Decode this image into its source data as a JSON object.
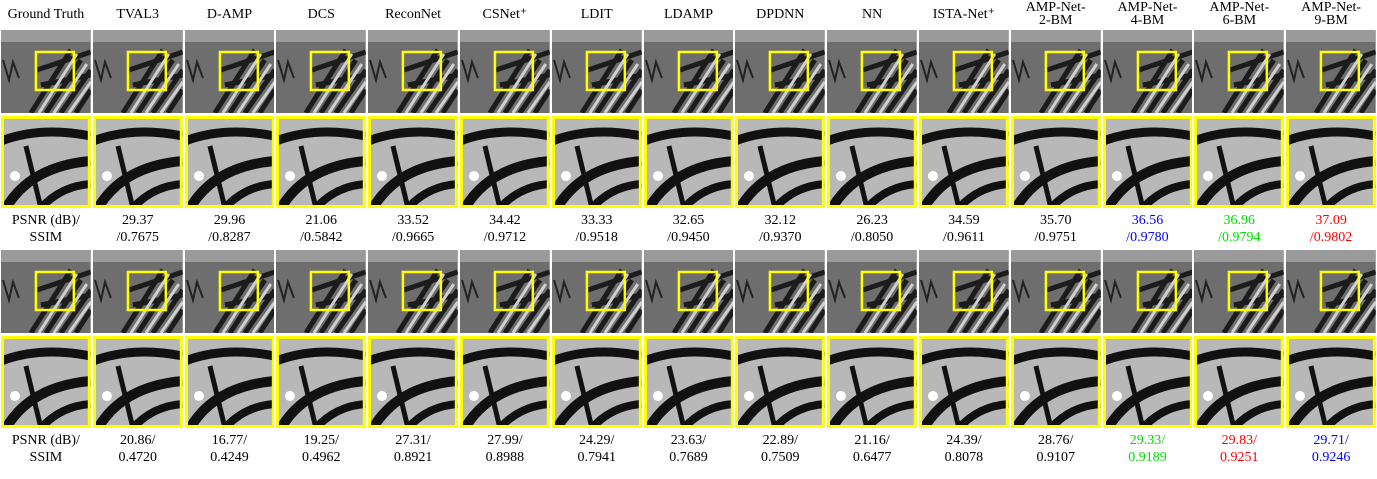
{
  "columns": [
    [
      "Ground Truth"
    ],
    [
      "TVAL3"
    ],
    [
      "D-AMP"
    ],
    [
      "DCS"
    ],
    [
      "ReconNet"
    ],
    [
      "CSNet⁺"
    ],
    [
      "LDIT"
    ],
    [
      "LDAMP"
    ],
    [
      "DPDNN"
    ],
    [
      "NN"
    ],
    [
      "ISTA-Net⁺"
    ],
    [
      "AMP-Net-",
      "2-BM"
    ],
    [
      "AMP-Net-",
      "4-BM"
    ],
    [
      "AMP-Net-",
      "6-BM"
    ],
    [
      "AMP-Net-",
      "9-BM"
    ]
  ],
  "blocks": [
    {
      "label": [
        "PSNR (dB)/",
        "SSIM"
      ],
      "metrics": [
        {
          "psnr": "29.37",
          "ssim": "/0.7675"
        },
        {
          "psnr": "29.96",
          "ssim": "/0.8287"
        },
        {
          "psnr": "21.06",
          "ssim": "/0.5842"
        },
        {
          "psnr": "33.52",
          "ssim": "/0.9665"
        },
        {
          "psnr": "34.42",
          "ssim": "/0.9712"
        },
        {
          "psnr": "33.33",
          "ssim": "/0.9518"
        },
        {
          "psnr": "32.65",
          "ssim": "/0.9450"
        },
        {
          "psnr": "32.12",
          "ssim": "/0.9370"
        },
        {
          "psnr": "26.23",
          "ssim": "/0.8050"
        },
        {
          "psnr": "34.59",
          "ssim": "/0.9611"
        },
        {
          "psnr": "35.70",
          "ssim": "/0.9751"
        },
        {
          "psnr": "36.56",
          "ssim": "/0.9780",
          "color": "#0000ff"
        },
        {
          "psnr": "36.96",
          "ssim": "/0.9794",
          "color": "#00dd00"
        },
        {
          "psnr": "37.09",
          "ssim": "/0.9802",
          "color": "#ff0000"
        }
      ]
    },
    {
      "label": [
        "PSNR (dB)/",
        "SSIM"
      ],
      "metrics": [
        {
          "psnr": "20.86/",
          "ssim": "0.4720"
        },
        {
          "psnr": "16.77/",
          "ssim": "0.4249"
        },
        {
          "psnr": "19.25/",
          "ssim": "0.4962"
        },
        {
          "psnr": "27.31/",
          "ssim": "0.8921"
        },
        {
          "psnr": "27.99/",
          "ssim": "0.8988"
        },
        {
          "psnr": "24.29/",
          "ssim": "0.7941"
        },
        {
          "psnr": "23.63/",
          "ssim": "0.7689"
        },
        {
          "psnr": "22.89/",
          "ssim": "0.7509"
        },
        {
          "psnr": "21.16/",
          "ssim": "0.6477"
        },
        {
          "psnr": "24.39/",
          "ssim": "0.8078"
        },
        {
          "psnr": "28.76/",
          "ssim": "0.9107"
        },
        {
          "psnr": "29.33/",
          "ssim": "0.9189",
          "color": "#00dd00"
        },
        {
          "psnr": "29.83/",
          "ssim": "0.9251",
          "color": "#ff0000"
        },
        {
          "psnr": "29.71/",
          "ssim": "0.9246",
          "color": "#0000ff"
        }
      ]
    }
  ]
}
